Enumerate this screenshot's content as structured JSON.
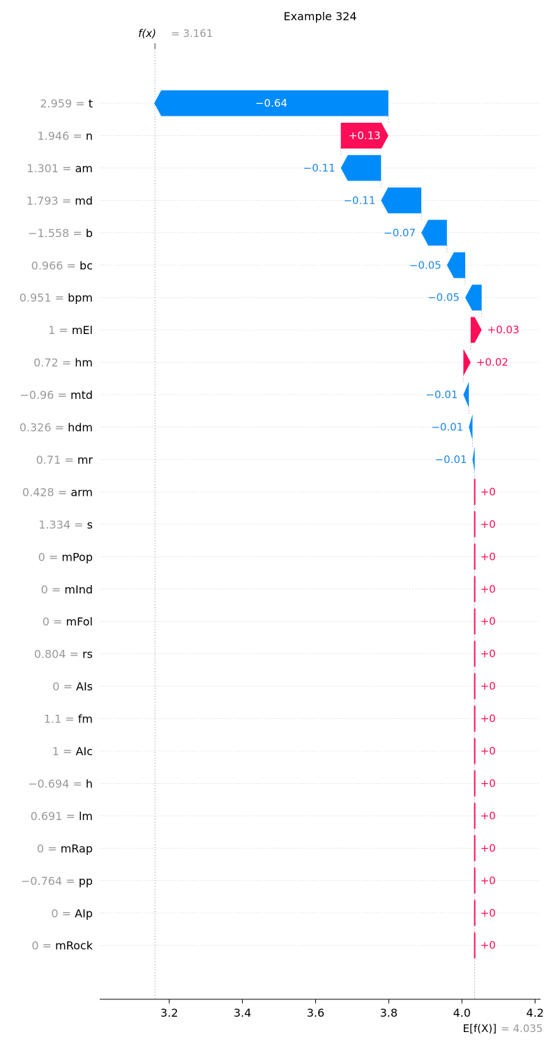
{
  "chart_data": {
    "type": "bar",
    "subtype": "shap-waterfall",
    "title": "Example 324",
    "fx": {
      "label": "f(x)",
      "value_text": "= 3.161",
      "value": 3.161
    },
    "ex": {
      "label": "E[f(X)]",
      "value_text": "= 4.035",
      "value": 4.035
    },
    "xlim": [
      3.01,
      4.215
    ],
    "xticks": [
      {
        "value": 3.2,
        "label": "3.2"
      },
      {
        "value": 3.4,
        "label": "3.4"
      },
      {
        "value": 3.6,
        "label": "3.6"
      },
      {
        "value": 3.8,
        "label": "3.8"
      },
      {
        "value": 4.0,
        "label": "4.0"
      },
      {
        "value": 4.2,
        "label": "4.2"
      }
    ],
    "colors": {
      "positive": "#ff0d57",
      "negative": "#008bfb",
      "negative_text": "#1e88e5"
    },
    "features": [
      {
        "value_label": "2.959 =",
        "name": "t",
        "shap": -0.64,
        "label": "−0.64"
      },
      {
        "value_label": "1.946 =",
        "name": "n",
        "shap": 0.13,
        "label": "+0.13"
      },
      {
        "value_label": "1.301 =",
        "name": "am",
        "shap": -0.11,
        "label": "−0.11"
      },
      {
        "value_label": "1.793 =",
        "name": "md",
        "shap": -0.11,
        "label": "−0.11"
      },
      {
        "value_label": "−1.558 =",
        "name": "b",
        "shap": -0.07,
        "label": "−0.07"
      },
      {
        "value_label": "0.966 =",
        "name": "bc",
        "shap": -0.05,
        "label": "−0.05"
      },
      {
        "value_label": "0.951 =",
        "name": "bpm",
        "shap": -0.045,
        "label": "−0.05"
      },
      {
        "value_label": "1 =",
        "name": "mEl",
        "shap": 0.03,
        "label": "+0.03"
      },
      {
        "value_label": "0.72 =",
        "name": "hm",
        "shap": 0.02,
        "label": "+0.02"
      },
      {
        "value_label": "−0.96 =",
        "name": "mtd",
        "shap": -0.015,
        "label": "−0.01"
      },
      {
        "value_label": "0.326 =",
        "name": "hdm",
        "shap": -0.01,
        "label": "−0.01"
      },
      {
        "value_label": "0.71 =",
        "name": "mr",
        "shap": -0.006,
        "label": "−0.01"
      },
      {
        "value_label": "0.428 =",
        "name": "arm",
        "shap": 0.0,
        "label": "+0"
      },
      {
        "value_label": "1.334 =",
        "name": "s",
        "shap": 0.0,
        "label": "+0"
      },
      {
        "value_label": "0 =",
        "name": "mPop",
        "shap": 0.0,
        "label": "+0"
      },
      {
        "value_label": "0 =",
        "name": "mInd",
        "shap": 0.0,
        "label": "+0"
      },
      {
        "value_label": "0 =",
        "name": "mFol",
        "shap": 0.0,
        "label": "+0"
      },
      {
        "value_label": "0.804 =",
        "name": "rs",
        "shap": 0.0,
        "label": "+0"
      },
      {
        "value_label": "0 =",
        "name": "AIs",
        "shap": 0.0,
        "label": "+0"
      },
      {
        "value_label": "1.1 =",
        "name": "fm",
        "shap": 0.0,
        "label": "+0"
      },
      {
        "value_label": "1 =",
        "name": "AIc",
        "shap": 0.0,
        "label": "+0"
      },
      {
        "value_label": "−0.694 =",
        "name": "h",
        "shap": 0.0,
        "label": "+0"
      },
      {
        "value_label": "0.691 =",
        "name": "lm",
        "shap": 0.0,
        "label": "+0"
      },
      {
        "value_label": "0 =",
        "name": "mRap",
        "shap": 0.0,
        "label": "+0"
      },
      {
        "value_label": "−0.764 =",
        "name": "pp",
        "shap": 0.0,
        "label": "+0"
      },
      {
        "value_label": "0 =",
        "name": "AIp",
        "shap": 0.0,
        "label": "+0"
      },
      {
        "value_label": "0 =",
        "name": "mRock",
        "shap": 0.0,
        "label": "+0"
      }
    ]
  }
}
